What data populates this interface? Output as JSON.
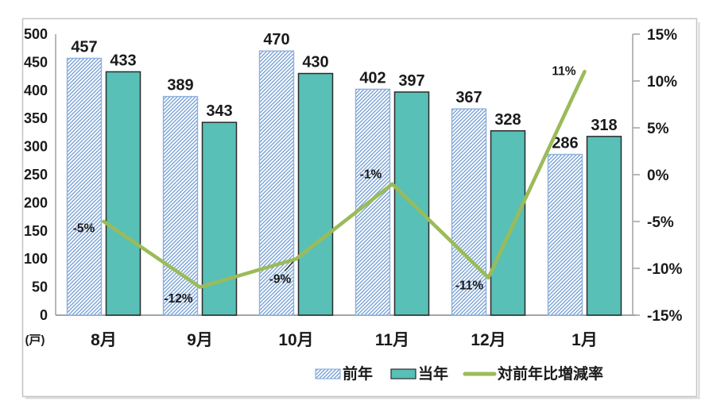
{
  "chart_data": {
    "type": "combo-bar-line",
    "title": "",
    "categories": [
      "8月",
      "9月",
      "10月",
      "11月",
      "12月",
      "1月"
    ],
    "bar_series": [
      {
        "name": "前年",
        "style": "hatched",
        "values": [
          457,
          389,
          470,
          402,
          367,
          286
        ]
      },
      {
        "name": "当年",
        "style": "solid",
        "values": [
          433,
          343,
          430,
          397,
          328,
          318
        ]
      }
    ],
    "line_series": {
      "name": "対前年比増減率",
      "values_percent": [
        -5,
        -12,
        -9,
        -1,
        -11,
        11
      ],
      "point_labels": [
        "-5%",
        "-12%",
        "-9%",
        "-1%",
        "-11%",
        "11%"
      ],
      "point_label_colors": [
        "#ff0000",
        "#ff0000",
        "#ff0000",
        "#ff0000",
        "#ff0000",
        "#0000ff"
      ]
    },
    "left_axis": {
      "unit_label": "(戸)",
      "min": 0,
      "max": 500,
      "step": 50,
      "tick_labels": [
        "500",
        "450",
        "400",
        "350",
        "300",
        "250",
        "200",
        "150",
        "100",
        "50",
        "0"
      ]
    },
    "right_axis": {
      "min": -15,
      "max": 15,
      "step": 5,
      "tick_labels": [
        "15%",
        "10%",
        "5%",
        "0%",
        "-5%",
        "-10%",
        "-15%"
      ]
    },
    "legend": {
      "position": "bottom",
      "items": [
        {
          "label": "前年",
          "swatch": "hatched-bar"
        },
        {
          "label": "当年",
          "swatch": "solid-bar"
        },
        {
          "label": "対前年比増減率",
          "swatch": "line"
        }
      ]
    },
    "grid": "off",
    "colors": {
      "prev_year_hatch": "#6f9bd2",
      "prev_year_border": "#8fb0de",
      "current_year_fill": "#58c0b6",
      "current_year_border": "#2b2b2b",
      "rate_line": "#9bbb59",
      "negative_label": "#ff0000",
      "positive_label": "#0000ff",
      "axis_line": "#a6a6a6",
      "text": "#1a1a1a",
      "frame_border": "#c6c6c6"
    }
  }
}
